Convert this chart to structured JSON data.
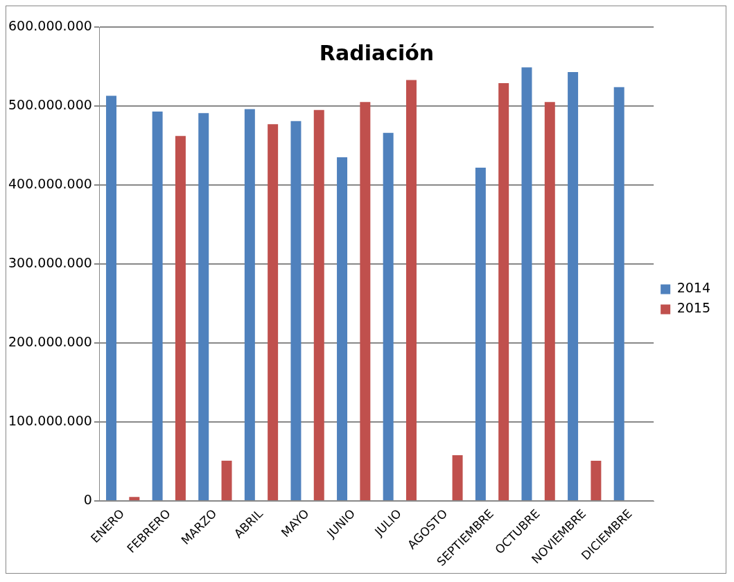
{
  "chart_data": {
    "type": "bar",
    "title": "Radiación",
    "categories": [
      "ENERO",
      "FEBRERO",
      "MARZO",
      "ABRIL",
      "MAYO",
      "JUNIO",
      "JULIO",
      "AGOSTO",
      "SEPTIEMBRE",
      "OCTUBRE",
      "NOVIEMBRE",
      "DICIEMBRE"
    ],
    "series": [
      {
        "name": "2014",
        "color": "#4f81bd",
        "values": [
          513000000,
          493000000,
          491000000,
          496000000,
          481000000,
          435000000,
          466000000,
          null,
          422000000,
          549000000,
          543000000,
          524000000
        ]
      },
      {
        "name": "2015",
        "color": "#c0504d",
        "values": [
          5000000,
          462000000,
          51000000,
          477000000,
          495000000,
          505000000,
          533000000,
          58000000,
          529000000,
          505000000,
          51000000,
          null
        ]
      }
    ],
    "ylim": [
      0,
      600000000
    ],
    "yticks": [
      {
        "value": 0,
        "label": "0"
      },
      {
        "value": 100000000,
        "label": "100.000.000"
      },
      {
        "value": 200000000,
        "label": "200.000.000"
      },
      {
        "value": 300000000,
        "label": "300.000.000"
      },
      {
        "value": 400000000,
        "label": "400.000.000"
      },
      {
        "value": 500000000,
        "label": "500.000.000"
      },
      {
        "value": 600000000,
        "label": "600.000.000"
      }
    ],
    "grid": "y",
    "legend": "right"
  }
}
